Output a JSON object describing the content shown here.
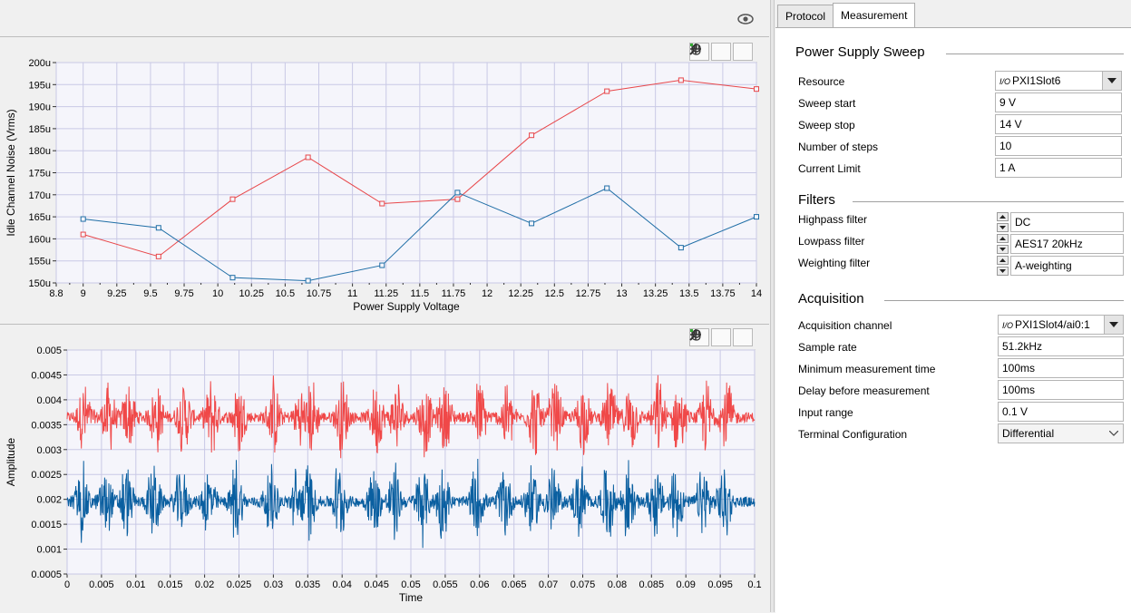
{
  "tabs": [
    "Protocol",
    "Measurement"
  ],
  "graph1": {
    "ylabel": "Idle Channel Noise (Vrms)",
    "xlabel": "Power Supply Voltage",
    "yticks": [
      "150u",
      "155u",
      "160u",
      "165u",
      "170u",
      "175u",
      "180u",
      "185u",
      "190u",
      "195u",
      "200u"
    ],
    "xticks": [
      "8.8",
      "9",
      "9.25",
      "9.5",
      "9.75",
      "10",
      "10.25",
      "10.5",
      "10.75",
      "11",
      "11.25",
      "11.5",
      "11.75",
      "12",
      "12.25",
      "12.5",
      "12.75",
      "13",
      "13.25",
      "13.5",
      "13.75",
      "14"
    ]
  },
  "graph2": {
    "ylabel": "Amplitude",
    "xlabel": "Time",
    "yticks": [
      "0.0005",
      "0.001",
      "0.0015",
      "0.002",
      "0.0025",
      "0.003",
      "0.0035",
      "0.004",
      "0.0045",
      "0.005"
    ],
    "xticks": [
      "0",
      "0.005",
      "0.01",
      "0.015",
      "0.02",
      "0.025",
      "0.03",
      "0.035",
      "0.04",
      "0.045",
      "0.05",
      "0.055",
      "0.06",
      "0.065",
      "0.07",
      "0.075",
      "0.08",
      "0.085",
      "0.09",
      "0.095",
      "0.1"
    ]
  },
  "chart_data": [
    {
      "type": "line",
      "xlabel": "Power Supply Voltage",
      "ylabel": "Idle Channel Noise (Vrms)",
      "xlim": [
        8.8,
        14
      ],
      "ylim": [
        0.00015,
        0.0002
      ],
      "grid": true,
      "series": [
        {
          "color": "#e8474a",
          "x": [
            9,
            9.56,
            10.11,
            10.67,
            11.22,
            11.78,
            12.33,
            12.89,
            13.44,
            14
          ],
          "y": [
            0.000161,
            0.000156,
            0.000169,
            0.0001785,
            0.000168,
            0.000169,
            0.0001835,
            0.0001935,
            0.000196,
            0.000194
          ]
        },
        {
          "color": "#1f6ea6",
          "x": [
            9,
            9.56,
            10.11,
            10.67,
            11.22,
            11.78,
            12.33,
            12.89,
            13.44,
            14
          ],
          "y": [
            0.0001645,
            0.0001625,
            0.0001512,
            0.0001505,
            0.000154,
            0.0001705,
            0.0001635,
            0.0001715,
            0.000158,
            0.000165
          ]
        }
      ]
    },
    {
      "type": "line",
      "xlabel": "Time",
      "ylabel": "Amplitude",
      "xlim": [
        0,
        0.1
      ],
      "ylim": [
        0.0005,
        0.005
      ],
      "grid": true,
      "series": [
        {
          "color": "#f04848",
          "baseline": 0.00365,
          "noise": 0.0001,
          "burst_amplitude": 0.00075
        },
        {
          "color": "#0a5fa0",
          "baseline": 0.00195,
          "noise": 0.0001,
          "burst_amplitude": 0.0008
        }
      ]
    }
  ],
  "panel": {
    "supply": {
      "title": "Power Supply Sweep",
      "rows": [
        {
          "label": "Resource",
          "value": "PXI1Slot6",
          "kind": "io"
        },
        {
          "label": "Sweep start",
          "value": "9 V"
        },
        {
          "label": "Sweep stop",
          "value": "14 V"
        },
        {
          "label": "Number of steps",
          "value": "10"
        },
        {
          "label": "Current Limit",
          "value": "1 A"
        }
      ]
    },
    "filters": {
      "title": "Filters",
      "rows": [
        {
          "label": "Highpass filter",
          "value": "DC"
        },
        {
          "label": "Lowpass filter",
          "value": "AES17 20kHz"
        },
        {
          "label": "Weighting filter",
          "value": "A-weighting"
        }
      ]
    },
    "acq": {
      "title": "Acquisition",
      "rows": [
        {
          "label": "Acquisition channel",
          "value": "PXI1Slot4/ai0:1",
          "kind": "io"
        },
        {
          "label": "Sample rate",
          "value": "51.2kHz"
        },
        {
          "label": "Minimum measurement time",
          "value": "100ms"
        },
        {
          "label": "Delay before measurement",
          "value": "100ms"
        },
        {
          "label": "Input range",
          "value": "0.1 V"
        },
        {
          "label": "Terminal Configuration",
          "value": "Differential",
          "kind": "dropdown"
        }
      ]
    }
  }
}
